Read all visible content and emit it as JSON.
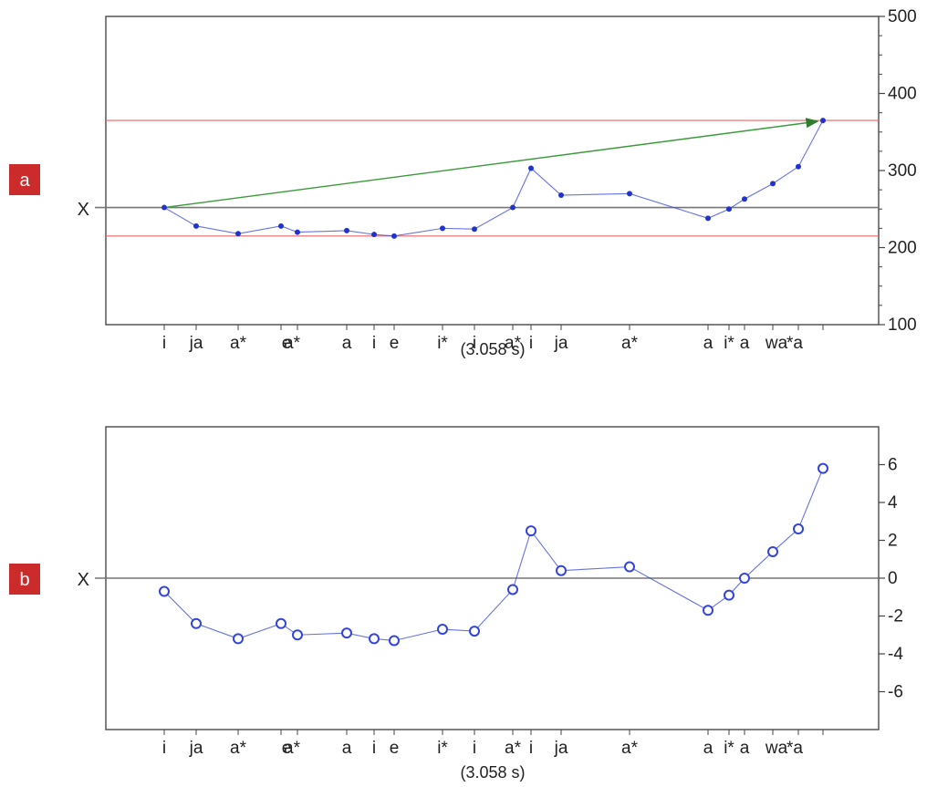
{
  "panels": [
    {
      "label": "a",
      "reference_label": "X",
      "caption": "(3.058 s)"
    },
    {
      "label": "b",
      "reference_label": "X",
      "caption": "(3.058 s)"
    }
  ],
  "colors": {
    "series": "#3344dd",
    "reference": "#777777",
    "bounds": "#ee6666",
    "arrow": "#3a9a3a",
    "badge": "#cc2b2b"
  },
  "chart_data": [
    {
      "type": "line",
      "x": [
        "i",
        "ja",
        "a*",
        "e",
        "a*",
        "a",
        "i",
        "e",
        "i*",
        "i",
        "a*",
        "i",
        "ja",
        "a*",
        "a",
        "i*",
        "a",
        "wa",
        "*a",
        ""
      ],
      "series": [
        {
          "values": [
            252,
            228,
            218,
            228,
            220,
            222,
            217,
            215,
            225,
            224,
            252,
            303,
            268,
            270,
            238,
            250,
            263,
            283,
            305,
            365
          ]
        }
      ],
      "ylim": [
        100,
        500
      ],
      "yticks": [
        100,
        200,
        300,
        400,
        500
      ],
      "y_axis_side": "right",
      "reference_line": 252,
      "bound_lines": [
        215,
        365
      ],
      "arrow": {
        "from_index": 0,
        "to_index": 19
      },
      "grid": false
    },
    {
      "type": "line",
      "x": [
        "i",
        "ja",
        "a*",
        "e",
        "a*",
        "a",
        "i",
        "e",
        "i*",
        "i",
        "a*",
        "i",
        "ja",
        "a*",
        "a",
        "i*",
        "a",
        "wa",
        "*a",
        ""
      ],
      "series": [
        {
          "values": [
            -0.7,
            -2.4,
            -3.2,
            -2.4,
            -3.0,
            -2.9,
            -3.2,
            -3.3,
            -2.7,
            -2.8,
            -0.6,
            2.5,
            0.4,
            0.6,
            -1.7,
            -0.9,
            0.0,
            1.4,
            2.6,
            5.8
          ]
        }
      ],
      "ylim": [
        -8,
        8
      ],
      "yticks": [
        -6,
        -4,
        -2,
        0,
        2,
        4,
        6
      ],
      "y_axis_side": "right",
      "reference_line": 0,
      "grid": false
    }
  ]
}
